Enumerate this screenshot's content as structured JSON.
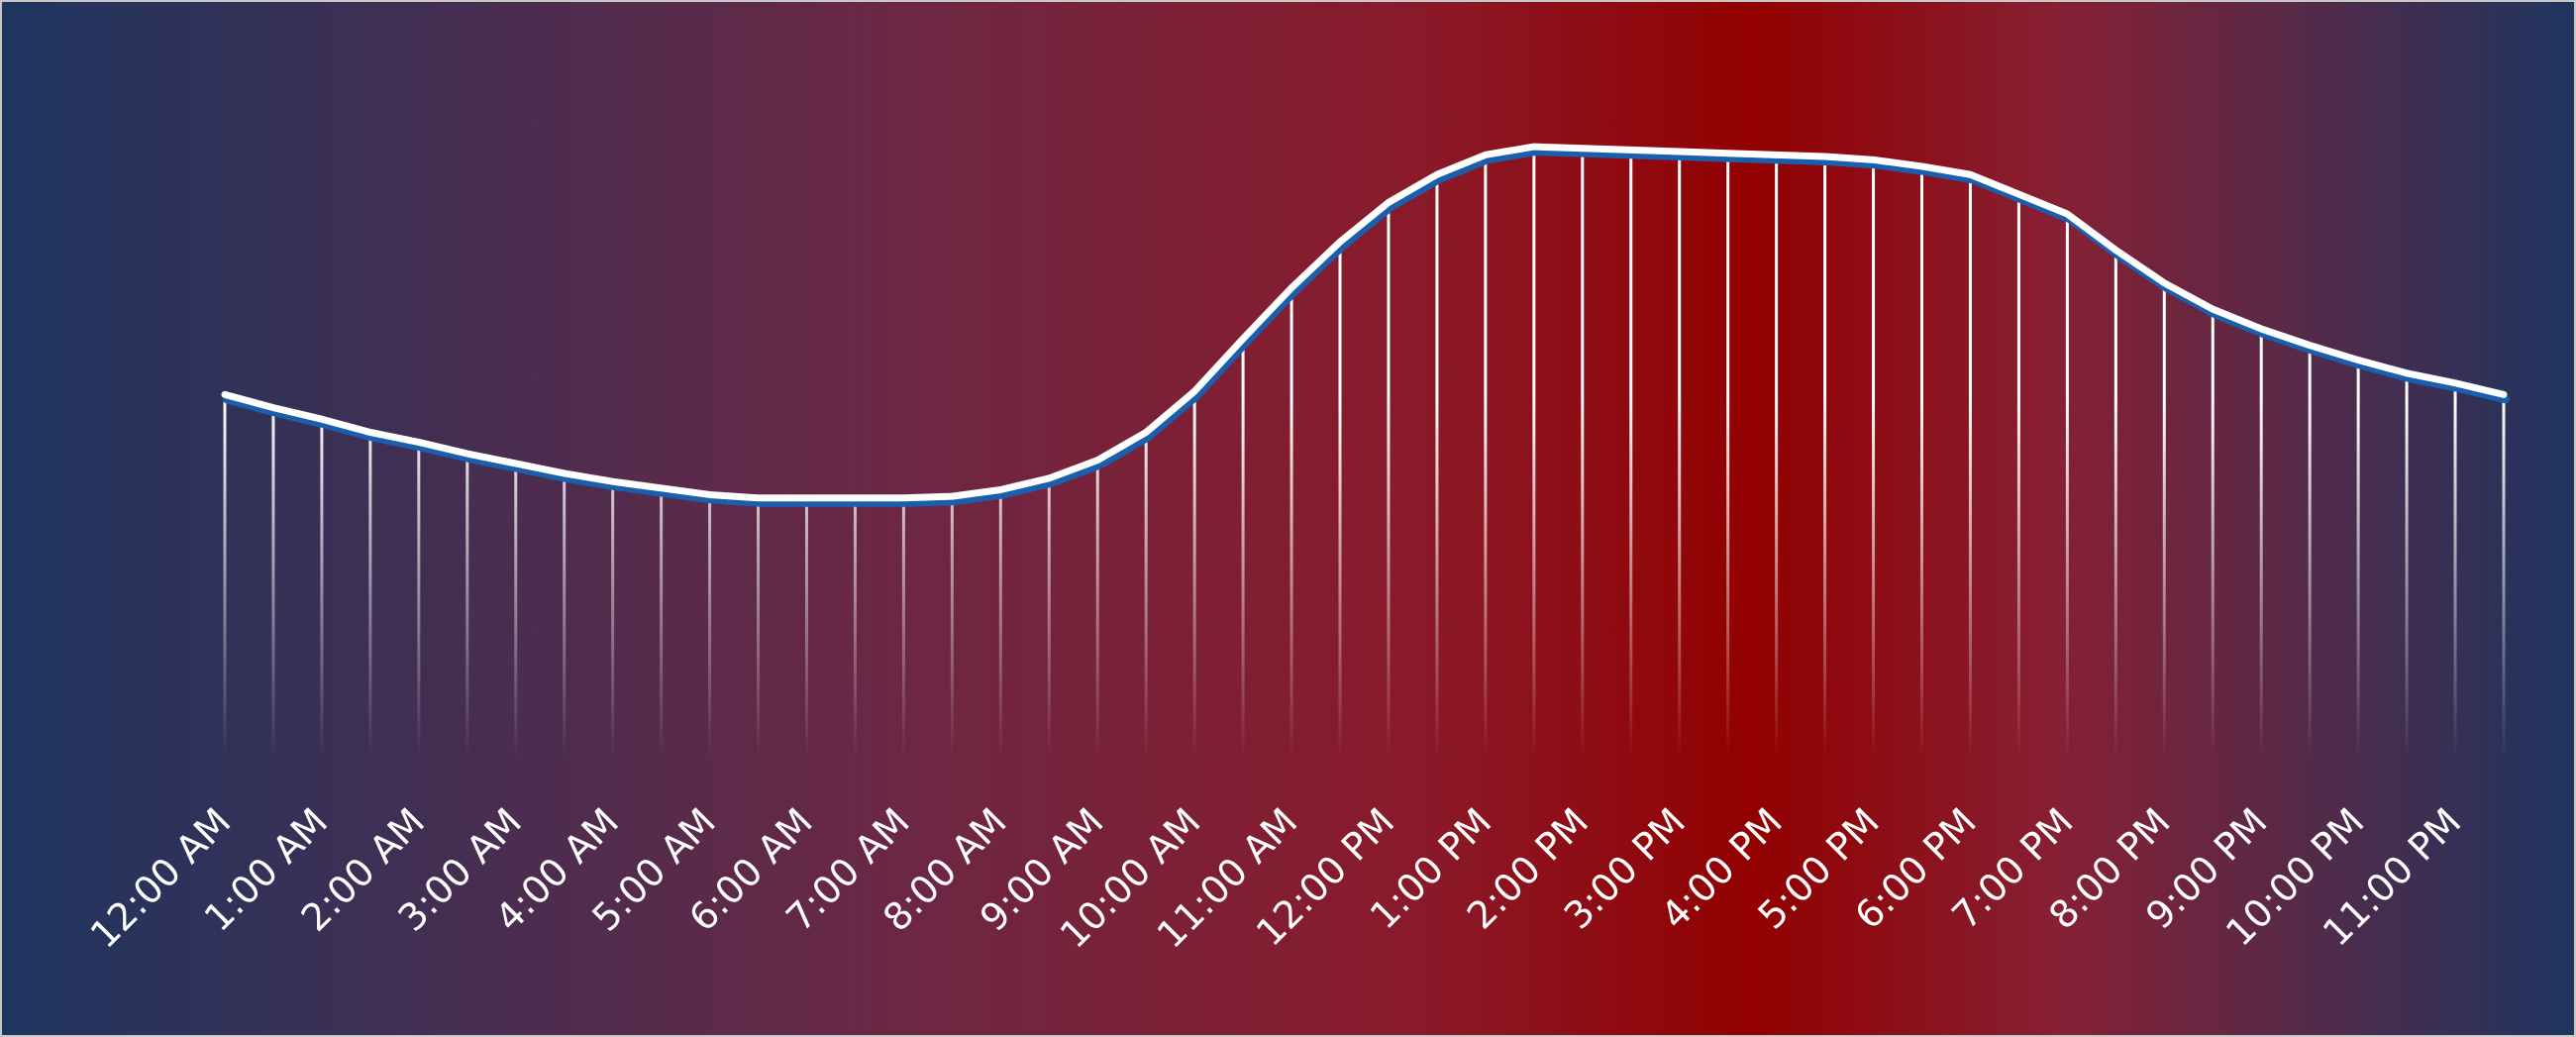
{
  "chart_data": {
    "type": "line",
    "categories": [
      "12:00 AM",
      null,
      "1:00 AM",
      null,
      "2:00 AM",
      null,
      "3:00 AM",
      null,
      "4:00 AM",
      null,
      "5:00 AM",
      null,
      "6:00 AM",
      null,
      "7:00 AM",
      null,
      "8:00 AM",
      null,
      "9:00 AM",
      null,
      "10:00 AM",
      null,
      "11:00 AM",
      null,
      "12:00 PM",
      null,
      "1:00 PM",
      null,
      "2:00 PM",
      null,
      "3:00 PM",
      null,
      "4:00 PM",
      null,
      "5:00 PM",
      null,
      "6:00 PM",
      null,
      "7:00 PM",
      null,
      "8:00 PM",
      null,
      "9:00 PM",
      null,
      "10:00 PM",
      null,
      "11:00 PM",
      null
    ],
    "series": [
      {
        "color": "#ffffff",
        "values": [
          220,
          212,
          205,
          197,
          191,
          184,
          178,
          172,
          167,
          163,
          159,
          157,
          157,
          157,
          157,
          158,
          162,
          169,
          180,
          197,
          222,
          254,
          285,
          313,
          337,
          354,
          366,
          371,
          370,
          369,
          368,
          367,
          366,
          365,
          363,
          359,
          354,
          342,
          330,
          308,
          288,
          272,
          260,
          250,
          241,
          233,
          227,
          220
        ]
      }
    ],
    "ylim": [
      0,
      400
    ],
    "drop_lines": true
  }
}
